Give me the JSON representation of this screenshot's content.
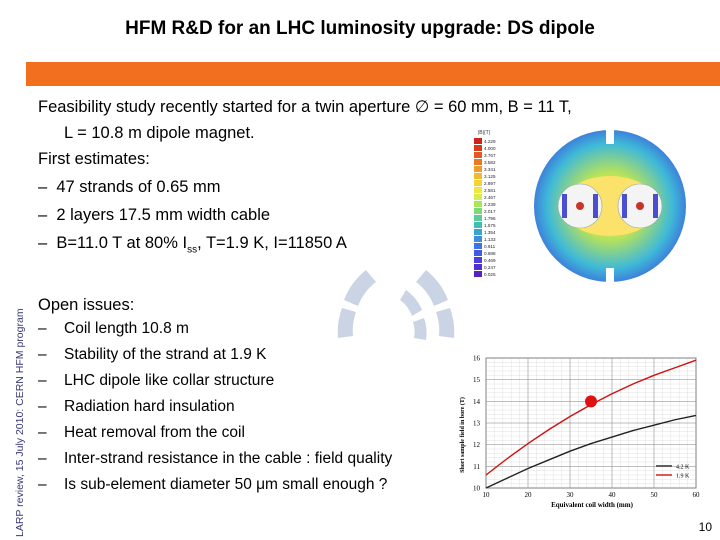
{
  "slide": {
    "title": "HFM R&D for an LHC luminosity upgrade: DS dipole",
    "side_label": "LARP review, 15 July 2010: CERN HFM program",
    "page_number": "10",
    "accent_color": "#f26f1f"
  },
  "body": {
    "line1": "Feasibility study recently started for a twin aperture ∅ = 60 mm, B = 11 T,",
    "line2": "L = 10.8 m dipole magnet.",
    "line3": "First estimates:",
    "est1": "47 strands of 0.65 mm",
    "est2": "2 layers 17.5 mm width cable",
    "est3_pre": "B=11.0 T at 80% I",
    "est3_sub": "ss",
    "est3_post": ", T=1.9 K, I=11850 A",
    "dash": "–"
  },
  "open_issues": {
    "heading": "Open issues:",
    "items": [
      "Coil length 10.8 m",
      "Stability of the strand at 1.9 K",
      "LHC dipole like collar structure",
      "Radiation hard insulation",
      "Heat removal from the coil",
      "Inter-strand resistance in the cable : field quality",
      "Is sub-element diameter 50 μm small enough ?"
    ]
  },
  "magnet_figure": {
    "header": "|B|(T)",
    "legend_values": [
      "4.229",
      "4.000",
      "3.767",
      "3.582",
      "3.341",
      "3.125",
      "2.897",
      "2.581",
      "2.467",
      "2.239",
      "2.017",
      "1.796",
      "1.575",
      "1.354",
      "1.133",
      "0.911",
      "0.688",
      "0.469",
      "0.247",
      "0.025"
    ],
    "legend_colors": [
      "#d0221a",
      "#d93a1e",
      "#e05a22",
      "#e87a25",
      "#ef9a2a",
      "#f4b82e",
      "#f8d133",
      "#f0e640",
      "#d2ef4a",
      "#a6e85a",
      "#7cdc74",
      "#57cf94",
      "#3ebfb4",
      "#36a8cf",
      "#3b8ee0",
      "#3f72e5",
      "#4458e0",
      "#4a42d8",
      "#5030cc",
      "#5522bf"
    ]
  },
  "chart_data": {
    "type": "line",
    "title": "",
    "xlabel": "Equivalent coil width (mm)",
    "ylabel": "Short sample field in bore (T)",
    "xlim": [
      10,
      60
    ],
    "ylim": [
      10,
      16
    ],
    "x_ticks": [
      10,
      20,
      30,
      40,
      50,
      60
    ],
    "y_ticks": [
      10,
      11,
      12,
      13,
      14,
      15,
      16
    ],
    "grid": true,
    "legend_position": "bottom-right",
    "series": [
      {
        "name": "4.2 K",
        "color": "#222222",
        "x": [
          10,
          15,
          20,
          25,
          30,
          35,
          40,
          45,
          50,
          55,
          60
        ],
        "y": [
          10.0,
          10.45,
          10.9,
          11.3,
          11.7,
          12.05,
          12.35,
          12.65,
          12.9,
          13.15,
          13.35
        ]
      },
      {
        "name": "1.9 K",
        "color": "#d01010",
        "x": [
          10,
          15,
          20,
          25,
          30,
          35,
          40,
          45,
          50,
          55,
          60
        ],
        "y": [
          10.6,
          11.35,
          12.05,
          12.7,
          13.3,
          13.85,
          14.35,
          14.8,
          15.2,
          15.55,
          15.9
        ]
      }
    ],
    "marker": {
      "x": 35,
      "y": 14.0,
      "color": "#e01010"
    }
  }
}
